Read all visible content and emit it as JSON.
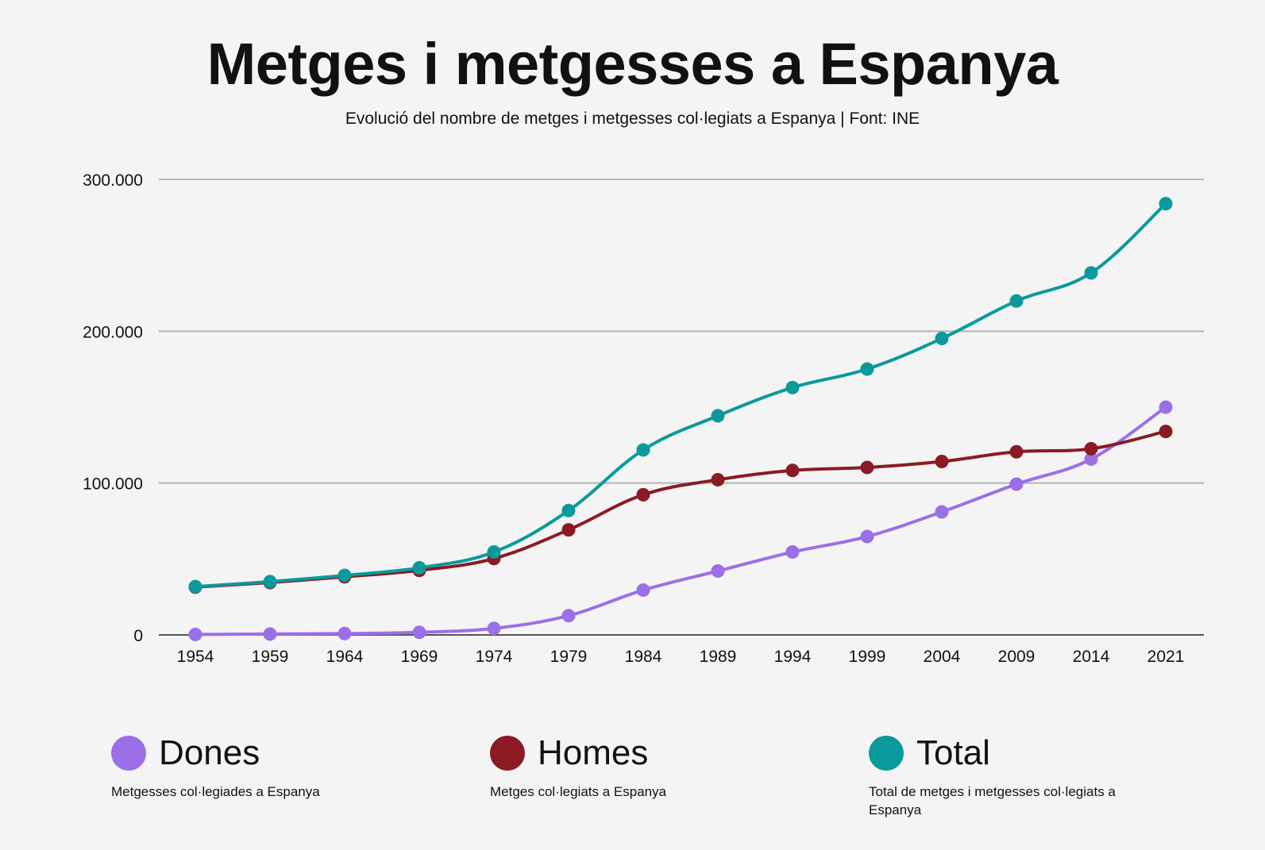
{
  "title": "Metges i metgesses a Espanya",
  "subtitle": "Evolució del nombre de metges i metgesses col·legiats a Espanya | Font: INE",
  "legend": [
    {
      "name": "Dones",
      "description": "Metgesses col·legiades a Espanya",
      "color": "#9b6fe8"
    },
    {
      "name": "Homes",
      "description": "Metges col·legiats a Espanya",
      "color": "#8b1a24"
    },
    {
      "name": "Total",
      "description": "Total de metges i metgesses col·legiats a Espanya",
      "color": "#0a9a9c"
    }
  ],
  "chart_data": {
    "type": "line",
    "title": "Metges i metgesses a Espanya",
    "categories": [
      "1954",
      "1959",
      "1964",
      "1969",
      "1974",
      "1979",
      "1984",
      "1989",
      "1994",
      "1999",
      "2004",
      "2009",
      "2014",
      "2021"
    ],
    "yticks": [
      "0",
      "100.000",
      "200.000",
      "300.000"
    ],
    "ylim": [
      0,
      300000
    ],
    "grid": true,
    "legend_position": "bottom",
    "series": [
      {
        "name": "Dones",
        "color": "#9b6fe8",
        "values": [
          300,
          600,
          900,
          1700,
          4300,
          12700,
          29500,
          42100,
          54600,
          64800,
          81000,
          99300,
          115800,
          150000
        ]
      },
      {
        "name": "Homes",
        "color": "#8b1a24",
        "values": [
          31500,
          34500,
          38300,
          42500,
          50300,
          69200,
          92300,
          102200,
          108300,
          110300,
          114200,
          120600,
          122600,
          134000
        ]
      },
      {
        "name": "Total",
        "color": "#0a9a9c",
        "values": [
          31800,
          35100,
          39200,
          44200,
          54600,
          81900,
          121800,
          144300,
          162900,
          175100,
          195200,
          219900,
          238400,
          284000
        ]
      }
    ]
  }
}
